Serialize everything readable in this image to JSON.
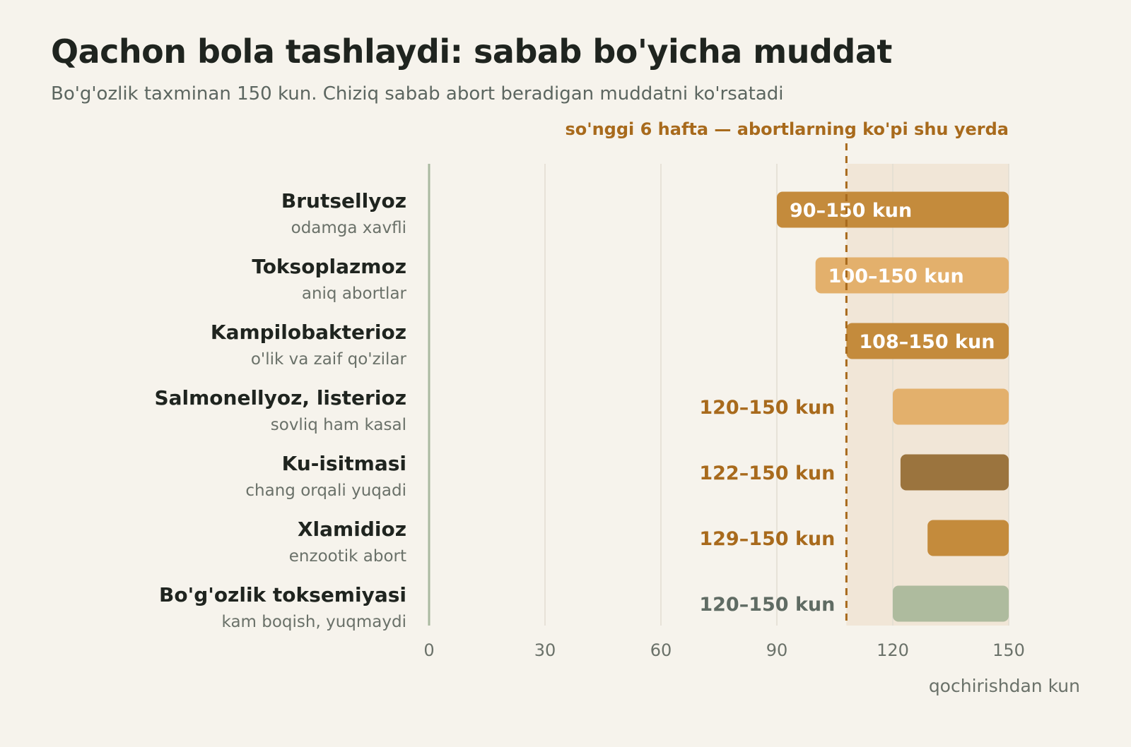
{
  "header": {
    "title": "Qachon bola tashlaydi: sabab bo'yicha muddat",
    "subtitle": "Bo'g'ozlik taxminan 150 kun. Chiziq sabab abort beradigan muddatni ko'rsatadi"
  },
  "colors": {
    "background": "#f6f3ec",
    "title": "#1f241f",
    "subtitle": "#5c6660",
    "annotation": "#a86a1c",
    "zone": "#f1e6d7",
    "grid": "#e2ddd2",
    "zero_line": "#a9b9a0"
  },
  "chart_data": {
    "type": "bar",
    "orientation": "horizontal",
    "subtype": "range",
    "xlabel": "qochirishdan kun",
    "xlim": [
      0,
      150
    ],
    "xticks": [
      0,
      30,
      60,
      90,
      120,
      150
    ],
    "grid": true,
    "highlight": {
      "from": 108,
      "to": 150,
      "marker": 108,
      "label": "so'nggi 6 hafta — abortlarning ko'pi shu yerda"
    },
    "categories": [
      {
        "name": "Brutsellyoz",
        "note": "odamga xavfli",
        "start": 90,
        "end": 150,
        "label": "90–150 kun",
        "color": "#c48b3c"
      },
      {
        "name": "Toksoplazmoz",
        "note": "aniq abortlar",
        "start": 100,
        "end": 150,
        "label": "100–150 kun",
        "color": "#e3b06c"
      },
      {
        "name": "Kampilobakterioz",
        "note": "o'lik va zaif qo'zilar",
        "start": 108,
        "end": 150,
        "label": "108–150 kun",
        "color": "#c48b3c"
      },
      {
        "name": "Salmonellyoz, listerioz",
        "note": "sovliq ham kasal",
        "start": 120,
        "end": 150,
        "label": "120–150 kun",
        "color": "#e3b06c"
      },
      {
        "name": "Ku-isitmasi",
        "note": "chang orqali yuqadi",
        "start": 122,
        "end": 150,
        "label": "122–150 kun",
        "color": "#9b743e"
      },
      {
        "name": "Xlamidioz",
        "note": "enzootik abort",
        "start": 129,
        "end": 150,
        "label": "129–150 kun",
        "color": "#c48b3c"
      },
      {
        "name": "Bo'g'ozlik toksemiyasi",
        "note": "kam boqish, yuqmaydi",
        "start": 120,
        "end": 150,
        "label": "120–150 kun",
        "color": "#aebb9e",
        "label_color": "#5f6b63"
      }
    ]
  }
}
